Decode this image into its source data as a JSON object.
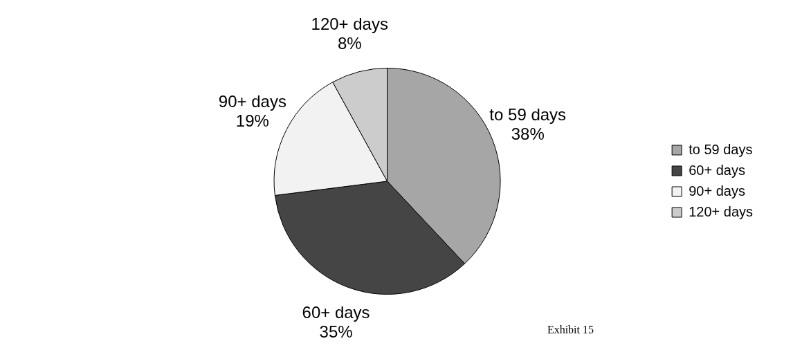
{
  "chart_data": {
    "type": "pie",
    "categories": [
      "to 59 days",
      "60+ days",
      "90+ days",
      "120+ days"
    ],
    "values": [
      38,
      35,
      19,
      8
    ],
    "colors": [
      "#a6a6a6",
      "#454545",
      "#f2f2f2",
      "#cccccc"
    ],
    "value_labels": [
      "38%",
      "35%",
      "19%",
      "8%"
    ],
    "legend": "right",
    "annotations": [
      "Exhibit 15"
    ]
  }
}
